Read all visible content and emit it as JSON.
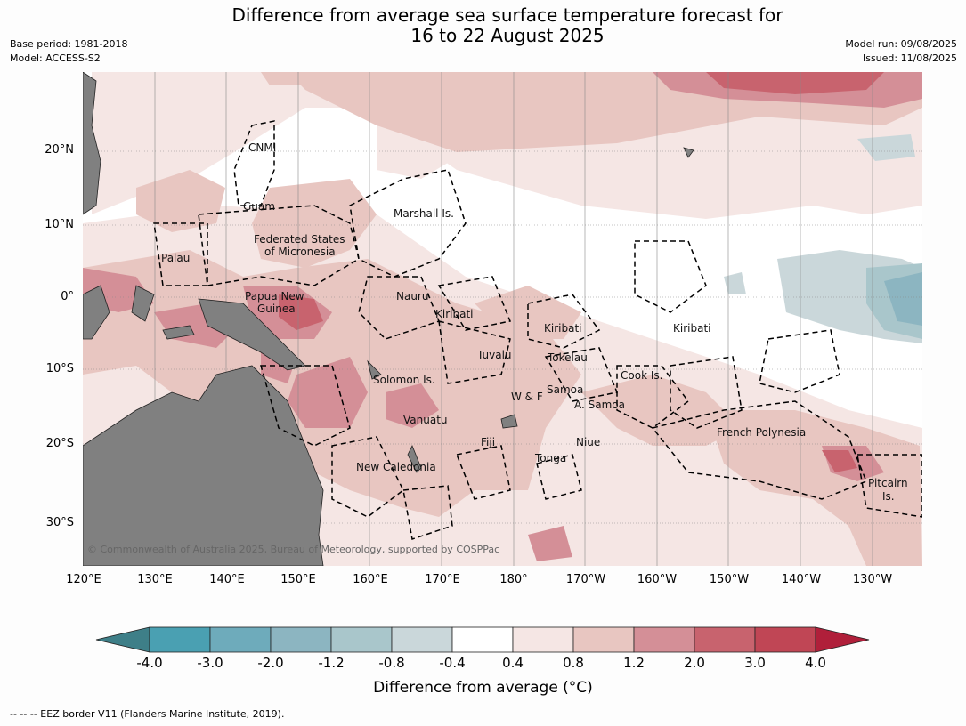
{
  "title_line1": "Difference from average sea surface temperature forecast for",
  "title_line2": "16 to 22 August 2025",
  "base_period": "Base period: 1981-2018",
  "model": "Model: ACCESS-S2",
  "model_run": "Model run: 09/08/2025",
  "issued": "Issued: 11/08/2025",
  "lat_labels": [
    "20°N",
    "10°N",
    "0°",
    "10°S",
    "20°S",
    "30°S"
  ],
  "lon_labels": [
    "120°E",
    "130°E",
    "140°E",
    "150°E",
    "160°E",
    "170°E",
    "180°",
    "170°W",
    "160°W",
    "150°W",
    "140°W",
    "130°W"
  ],
  "place_names": [
    "CNMI",
    "Guam",
    "Marshall Is.",
    "Federated States",
    "of Micronesia",
    "Palau",
    "Papua New",
    "Guinea",
    "Nauru",
    "Kiribati",
    "Kiribati",
    "Kiribati",
    "Tuvalu",
    "Tokelau",
    "Cook Is.",
    "Solomon Is.",
    "Samoa",
    "W & F",
    "A. Samoa",
    "Vanuatu",
    "Fiji",
    "Niue",
    "Tonga",
    "French Polynesia",
    "New Caledonia",
    "Pitcairn",
    "Is."
  ],
  "copyright": "© Commonwealth of Australia 2025, Bureau of Meteorology, supported by COSPPac",
  "colorbar": {
    "ticks": [
      "-4.0",
      "-3.0",
      "-2.0",
      "-1.2",
      "-0.8",
      "-0.4",
      "0.4",
      "0.8",
      "1.2",
      "2.0",
      "3.0",
      "4.0"
    ],
    "colors": [
      "#3e7f88",
      "#4aa0b2",
      "#6eabbb",
      "#8cb5c1",
      "#a9c6cb",
      "#cad7da",
      "#ffffff",
      "#f5e6e4",
      "#e8c6c1",
      "#d48f97",
      "#c8636e",
      "#c04655",
      "#b01f3a"
    ],
    "label": "Difference from average (°C)"
  },
  "footnote": "--  --  -- EEZ border V11 (Flanders Marine Institute, 2019)."
}
